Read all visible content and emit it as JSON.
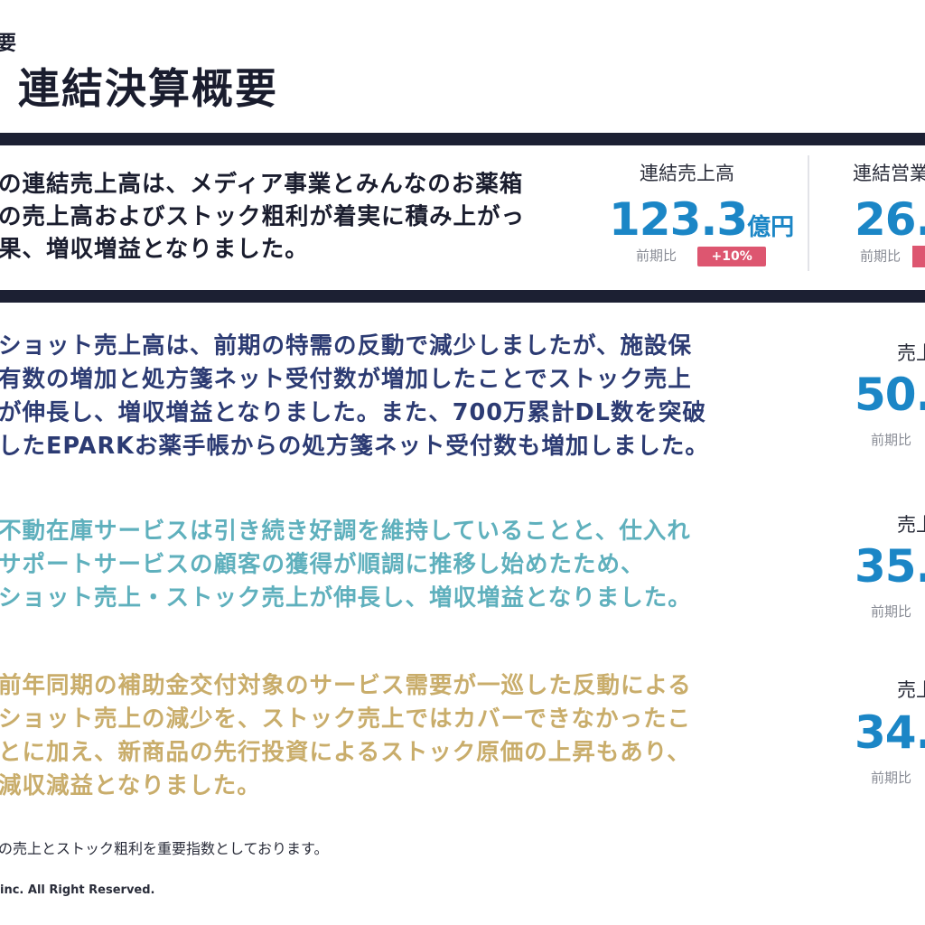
{
  "header": {
    "breadcrumb": "要",
    "title": "連結決算概要"
  },
  "summary": {
    "lines": [
      "の連結売上高は、メディア事業とみんなのお薬箱",
      "の売上高およびストック粗利が着実に積み上がっ",
      "果、増収増益となりました。"
    ]
  },
  "kpis": [
    {
      "label": "連結売上高",
      "value": "123.3",
      "unit": "億円",
      "compare_label": "前期比",
      "badge": "+10%"
    },
    {
      "label": "連結営業",
      "value": "26.",
      "unit": "",
      "compare_label": "前期比",
      "badge": ""
    }
  ],
  "segments": [
    {
      "lines": [
        "ショット売上高は、前期の特需の反動で減少しましたが、施設保",
        "有数の増加と処方箋ネット受付数が増加したことでストック売上",
        "が伸長し、増収増益となりました。また、700万累計DL数を突破",
        "したEPARKお薬手帳からの処方箋ネット受付数も増加しました。"
      ],
      "side_label": "売上",
      "side_value": "50.",
      "side_compare": "前期比",
      "color": "#2c3b73"
    },
    {
      "lines": [
        "不動在庫サービスは引き続き好調を維持していることと、仕入れ",
        "サポートサービスの顧客の獲得が順調に推移し始めたため、",
        "ショット売上・ストック売上が伸長し、増収増益となりました。"
      ],
      "side_label": "売上",
      "side_value": "35.",
      "side_compare": "前期比",
      "color": "#5fb0bd"
    },
    {
      "lines": [
        "前年同期の補助金交付対象のサービス需要が一巡した反動による",
        "ショット売上の減少を、ストック売上ではカバーできなかったこ",
        "とに加え、新商品の先行投資によるストック原価の上昇もあり、",
        "減収減益となりました。"
      ],
      "side_label": "売上",
      "side_value": "34.",
      "side_compare": "前期比",
      "color": "#c9ad6b"
    }
  ],
  "footer": {
    "note": "の売上とストック粗利を重要指数としております。",
    "copyright": "inc. All Right Reserved."
  },
  "colors": {
    "accent_blue": "#1b86c6",
    "dark_bar": "#1c2033",
    "badge_red": "#dd5670"
  }
}
